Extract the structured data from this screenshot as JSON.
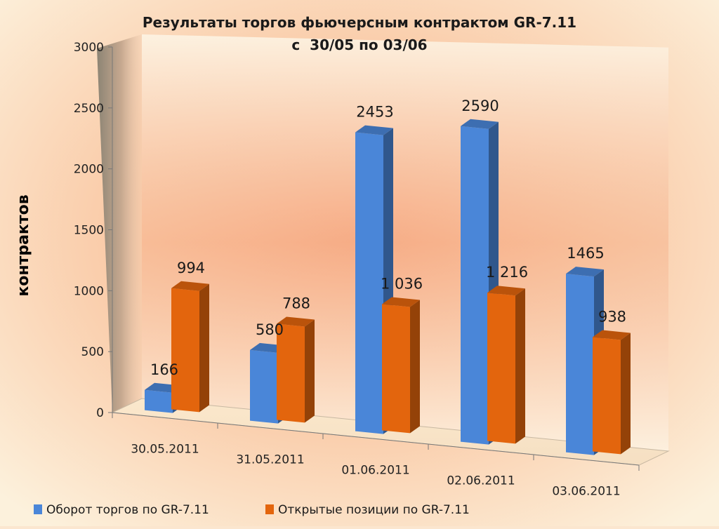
{
  "chart_data": {
    "type": "bar",
    "title": "Результаты торгов фьючерсным контрактом GR-7.11",
    "subtitle": "с  30/05 по 03/06",
    "ylabel": "контрактов",
    "xlabel": "",
    "ylim": [
      0,
      3000
    ],
    "yticks": [
      "0",
      "500",
      "1000",
      "1500",
      "2000",
      "2500",
      "3000"
    ],
    "categories": [
      "30.05.2011",
      "31.05.2011",
      "01.06.2011",
      "02.06.2011",
      "03.06.2011"
    ],
    "series": [
      {
        "name": "Оборот торгов по GR-7.11",
        "values": [
          166,
          580,
          2453,
          2590,
          1465
        ],
        "labels": [
          "166",
          "580",
          "2453",
          "2590",
          "1465"
        ],
        "color": "#4a86d8"
      },
      {
        "name": "Открытые позиции по GR-7.11",
        "values": [
          994,
          788,
          1036,
          1216,
          938
        ],
        "labels": [
          "994",
          "788",
          "1 036",
          "1 216",
          "938"
        ],
        "color": "#e3650d"
      }
    ],
    "legend_position": "bottom-left",
    "grid": false
  }
}
